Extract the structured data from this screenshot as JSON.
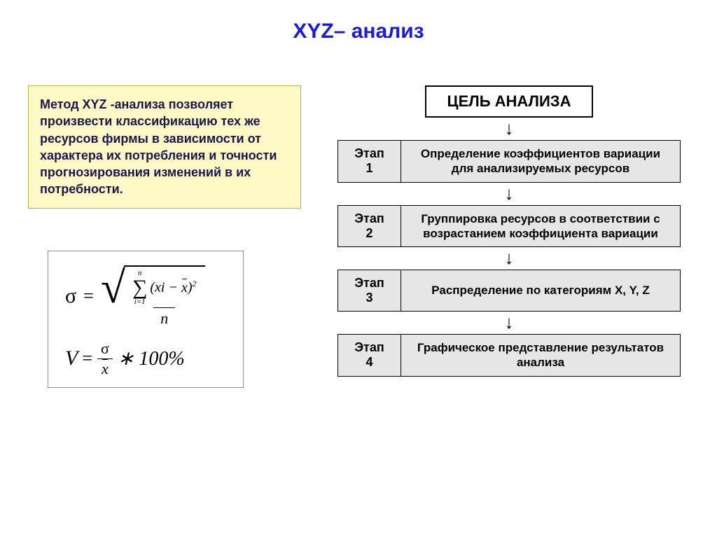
{
  "title": {
    "text": "XYZ– анализ",
    "color": "#1b1bd6",
    "fontsize": 30
  },
  "description": {
    "text": "Метод XYZ -анализа позволяет произвести классификацию тех же ресурсов фирмы в зависимости от характера их потребления и точности прогнозирования изменений в их потребности.",
    "background": "#fdf9c6",
    "border_color": "#b9b24a",
    "text_color": "#1c1648",
    "fontsize": 18
  },
  "formula_box": {
    "border_color": "#8c8c8c",
    "sigma_label": "σ",
    "sum_upper": "n",
    "sum_lower": "i=1",
    "summand_before": "(xi −",
    "summand_xbar": "x",
    "summand_after": ")",
    "summand_exp": "2",
    "denominator": "n",
    "v_label": "V",
    "v_num": "σ",
    "v_den": "x",
    "v_tail": "∗ 100%"
  },
  "goal": {
    "text": "ЦЕЛЬ АНАЛИЗА",
    "fontsize": 22
  },
  "stages": {
    "label_word": "Этап",
    "label_fontsize": 18,
    "desc_fontsize": 17,
    "row_bg": "#e6e6e6",
    "items": [
      {
        "num": "1",
        "desc": "Определение коэффициентов вариации для анализируемых ресурсов"
      },
      {
        "num": "2",
        "desc": "Группировка ресурсов в соответствии с возрастанием коэффициента вариации"
      },
      {
        "num": "3",
        "desc": "Распределение по категориям X, Y, Z"
      },
      {
        "num": "4",
        "desc": "Графическое представление результатов анализа"
      }
    ]
  },
  "arrow_glyph": "↓"
}
